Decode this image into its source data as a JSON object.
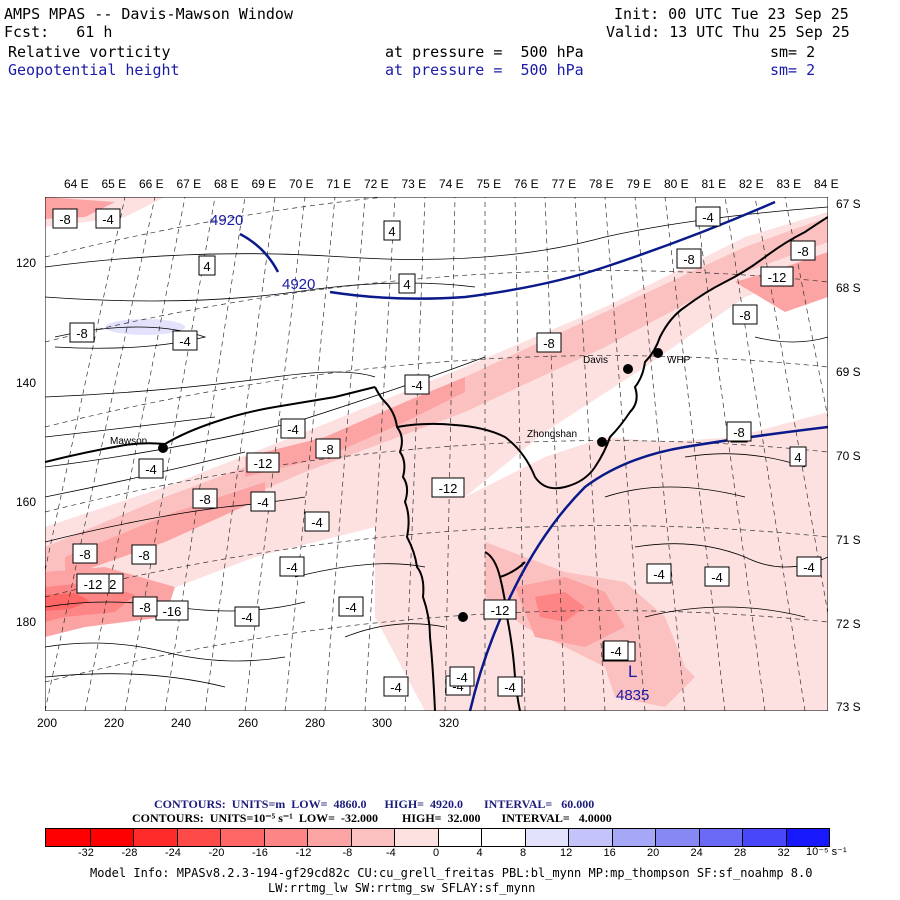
{
  "header": {
    "title": "AMPS MPAS -- Davis-Mawson Window",
    "init": "Init: 00 UTC Tue 23 Sep 25",
    "fcst": "Fcst:   61 h",
    "valid": "Valid: 13 UTC Thu 25 Sep 25",
    "field1": {
      "name": "Relative vorticity",
      "level": "at pressure =  500 hPa",
      "smooth": "sm= 2"
    },
    "field2": {
      "name": "Geopotential height",
      "level": "at pressure =  500 hPa",
      "smooth": "sm= 2"
    }
  },
  "map": {
    "lon_labels": [
      "64 E",
      "65 E",
      "66 E",
      "67 E",
      "68 E",
      "69 E",
      "70 E",
      "71 E",
      "72 E",
      "73 E",
      "74 E",
      "75 E",
      "76 E",
      "77 E",
      "78 E",
      "79 E",
      "80 E",
      "81 E",
      "82 E",
      "83 E",
      "84 E"
    ],
    "lat_labels": [
      "67 S",
      "68 S",
      "69 S",
      "70 S",
      "71 S",
      "72 S",
      "73 S"
    ],
    "y_ticks": [
      "120",
      "140",
      "160",
      "180"
    ],
    "x_ticks": [
      "200",
      "220",
      "240",
      "260",
      "280",
      "300",
      "320"
    ],
    "stations": [
      "Mawson",
      "Davis",
      "WHP",
      "Zhongshan"
    ],
    "height_labels": [
      "4920",
      "4920"
    ],
    "low_marker": {
      "letter": "L",
      "value": "4835"
    },
    "vort_labels": [
      "-8",
      "-4",
      "4",
      "4",
      "4",
      "-4",
      "-8",
      "-4",
      "-8",
      "-12",
      "-8",
      "-8",
      "-4",
      "-4",
      "-8",
      "-12",
      "-4",
      "-12",
      "-8",
      "-4",
      "-4",
      "-12",
      "-8",
      "-8",
      "-4",
      "-4",
      "-4",
      "-4",
      "-12",
      "-16",
      "4",
      "4",
      "-4",
      "-4",
      "-8",
      "-4",
      "-4",
      "-4",
      "-12",
      "-4",
      "-4",
      "-8",
      "-12",
      "-8",
      "-8"
    ]
  },
  "footer": {
    "contours1": "CONTOURS:  UNITS=m  LOW=  4860.0      HIGH=  4920.0       INTERVAL=   60.000",
    "contours2": "CONTOURS:  UNITS=10⁻⁵ s⁻¹  LOW=  -32.000        HIGH=  32.000       INTERVAL=   4.0000",
    "colorbar_labels": [
      "-32",
      "-28",
      "-24",
      "-20",
      "-16",
      "-12",
      "-8",
      "-4",
      "0",
      "4",
      "8",
      "12",
      "16",
      "20",
      "24",
      "28",
      "32"
    ],
    "colorbar_unit": "10⁻⁵ s⁻¹",
    "colorbar_colors": [
      "#ff0000",
      "#ff2a2a",
      "#ff4a4a",
      "#ff6666",
      "#fd8585",
      "#fca3a3",
      "#fbc0c0",
      "#fde0e0",
      "#ffffff",
      "#ffffff",
      "#e2e2fc",
      "#c4c4fa",
      "#a7a7f7",
      "#8888f5",
      "#6a6af7",
      "#4848fa",
      "#1818fc"
    ],
    "model_info_1": "Model Info: MPASv8.2.3-194-gf29cd82c CU:cu_grell_freitas PBL:bl_mynn MP:mp_thompson SF:sf_noahmp 8.0",
    "model_info_2": "LW:rrtmg_lw SW:rrtmg_sw SFLAY:sf_mynn"
  }
}
